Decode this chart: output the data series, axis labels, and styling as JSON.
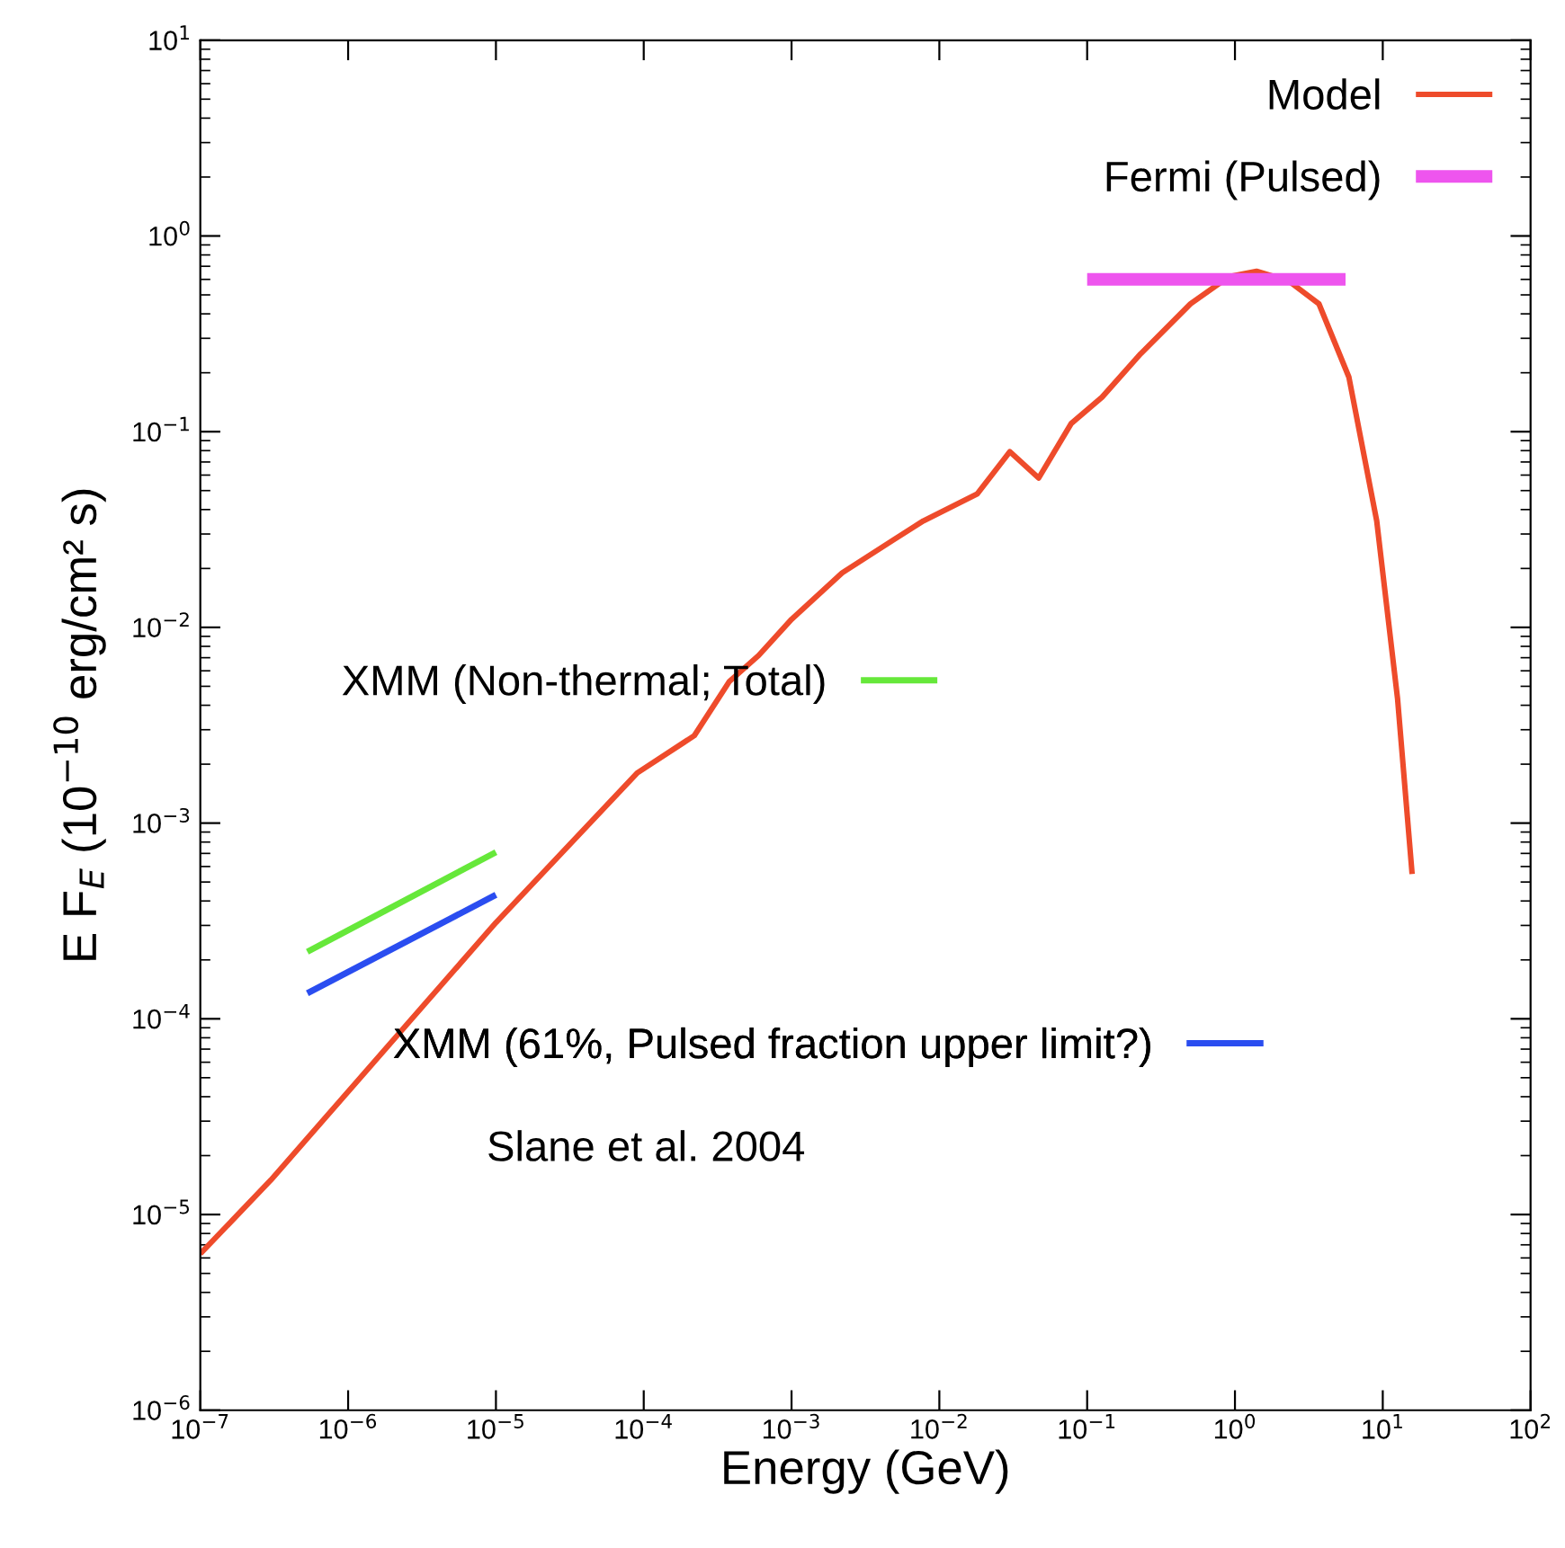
{
  "chart_data": {
    "type": "line",
    "xlabel": "Energy (GeV)",
    "ylabel": "E F$_{E}$ (10$^{−10}$ erg/cm² s)",
    "log": "xy",
    "grid": false,
    "legend": "top right",
    "line_style": "solid",
    "marker": "none",
    "xlim": [
      1e-07,
      100
    ],
    "ylim": [
      1e-06,
      10
    ],
    "xticks": [
      {
        "value": 1e-07,
        "label": "10$^{−7}$"
      },
      {
        "value": 1e-06,
        "label": "10$^{−6}$"
      },
      {
        "value": 1e-05,
        "label": "10$^{−5}$"
      },
      {
        "value": 0.0001,
        "label": "10$^{−4}$"
      },
      {
        "value": 0.001,
        "label": "10$^{−3}$"
      },
      {
        "value": 0.01,
        "label": "10$^{−2}$"
      },
      {
        "value": 0.1,
        "label": "10$^{−1}$"
      },
      {
        "value": 1,
        "label": "10$^{0}$"
      },
      {
        "value": 10,
        "label": "10$^{1}$"
      },
      {
        "value": 100,
        "label": "10$^{2}$"
      }
    ],
    "yticks": [
      {
        "value": 1e-06,
        "label": "10$^{−6}$"
      },
      {
        "value": 1e-05,
        "label": "10$^{−5}$"
      },
      {
        "value": 0.0001,
        "label": "10$^{−4}$"
      },
      {
        "value": 0.001,
        "label": "10$^{−3}$"
      },
      {
        "value": 0.01,
        "label": "10$^{−2}$"
      },
      {
        "value": 0.1,
        "label": "10$^{−1}$"
      },
      {
        "value": 1,
        "label": "10$^{0}$"
      },
      {
        "value": 10,
        "label": "10$^{1}$"
      }
    ],
    "series": [
      {
        "name": "Model",
        "color": "#ee4b2b",
        "x": [
          1e-07,
          3e-07,
          1e-05,
          9e-05,
          0.00022,
          0.00038,
          0.0006,
          0.001,
          0.0022,
          0.0049,
          0.0078,
          0.018,
          0.03,
          0.047,
          0.078,
          0.126,
          0.23,
          0.5,
          0.91,
          1.4,
          2.3,
          3.7,
          5.9,
          9.1,
          12.6,
          15.8
        ],
        "values": [
          6.3e-06,
          1.5e-05,
          0.00031,
          0.0018,
          0.0028,
          0.0053,
          0.0072,
          0.011,
          0.019,
          0.028,
          0.035,
          0.048,
          0.079,
          0.058,
          0.11,
          0.15,
          0.25,
          0.45,
          0.62,
          0.66,
          0.59,
          0.45,
          0.19,
          0.035,
          0.0043,
          0.00055
        ]
      },
      {
        "name": "Fermi (Pulsed)",
        "color": "#ee55ee",
        "x": [
          0.1,
          5.6
        ],
        "values": [
          0.6,
          0.6
        ]
      },
      {
        "name": "XMM (Non-thermal; Total)",
        "color": "#66e83a",
        "x": [
          5.3e-07,
          1e-05
        ],
        "values": [
          0.00022,
          0.00071
        ]
      },
      {
        "name": "XMM (61%, Pulsed fraction upper limit?)",
        "color": "#2a4df0",
        "x": [
          5.3e-07,
          1e-05
        ],
        "values": [
          0.000135,
          0.00043
        ]
      }
    ],
    "annotations": [
      "Slane et al. 2004"
    ]
  }
}
